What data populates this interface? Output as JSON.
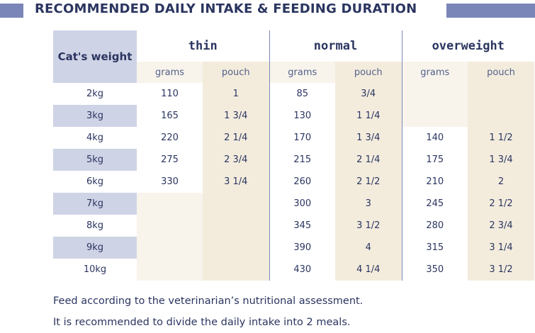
{
  "title": "RECOMMENDED DAILY INTAKE & FEEDING DURATION",
  "table": {
    "weight_header": "Cat's weight",
    "groups": [
      "thin",
      "normal",
      "overweight"
    ],
    "subheaders": [
      "grams",
      "pouch",
      "grams",
      "pouch",
      "grams",
      "pouch"
    ],
    "rows": [
      {
        "weight": "2kg",
        "cells": [
          "110",
          "1",
          "85",
          "3/4",
          "",
          ""
        ]
      },
      {
        "weight": "3kg",
        "cells": [
          "165",
          "1 3/4",
          "130",
          "1 1/4",
          "",
          ""
        ]
      },
      {
        "weight": "4kg",
        "cells": [
          "220",
          "2 1/4",
          "170",
          "1 3/4",
          "140",
          "1 1/2"
        ]
      },
      {
        "weight": "5kg",
        "cells": [
          "275",
          "2 3/4",
          "215",
          "2 1/4",
          "175",
          "1 3/4"
        ]
      },
      {
        "weight": "6kg",
        "cells": [
          "330",
          "3 1/4",
          "260",
          "2 1/2",
          "210",
          "2"
        ]
      },
      {
        "weight": "7kg",
        "cells": [
          "",
          "",
          "300",
          "3",
          "245",
          "2 1/2"
        ]
      },
      {
        "weight": "8kg",
        "cells": [
          "",
          "",
          "345",
          "3 1/2",
          "280",
          "2 3/4"
        ]
      },
      {
        "weight": "9kg",
        "cells": [
          "",
          "",
          "390",
          "4",
          "315",
          "3 1/4"
        ]
      },
      {
        "weight": "10kg",
        "cells": [
          "",
          "",
          "430",
          "4 1/4",
          "350",
          "3 1/2"
        ]
      }
    ]
  },
  "notes": [
    "Feed according to the veterinarian’s nutritional assessment.",
    "It is recommended to divide the daily intake into 2 meals."
  ],
  "colors": {
    "title_text": "#2b3560",
    "accent_bar": "#7b86b8",
    "weight_header_bg": "#cfd3e6",
    "cream": "#f3ecdd"
  }
}
